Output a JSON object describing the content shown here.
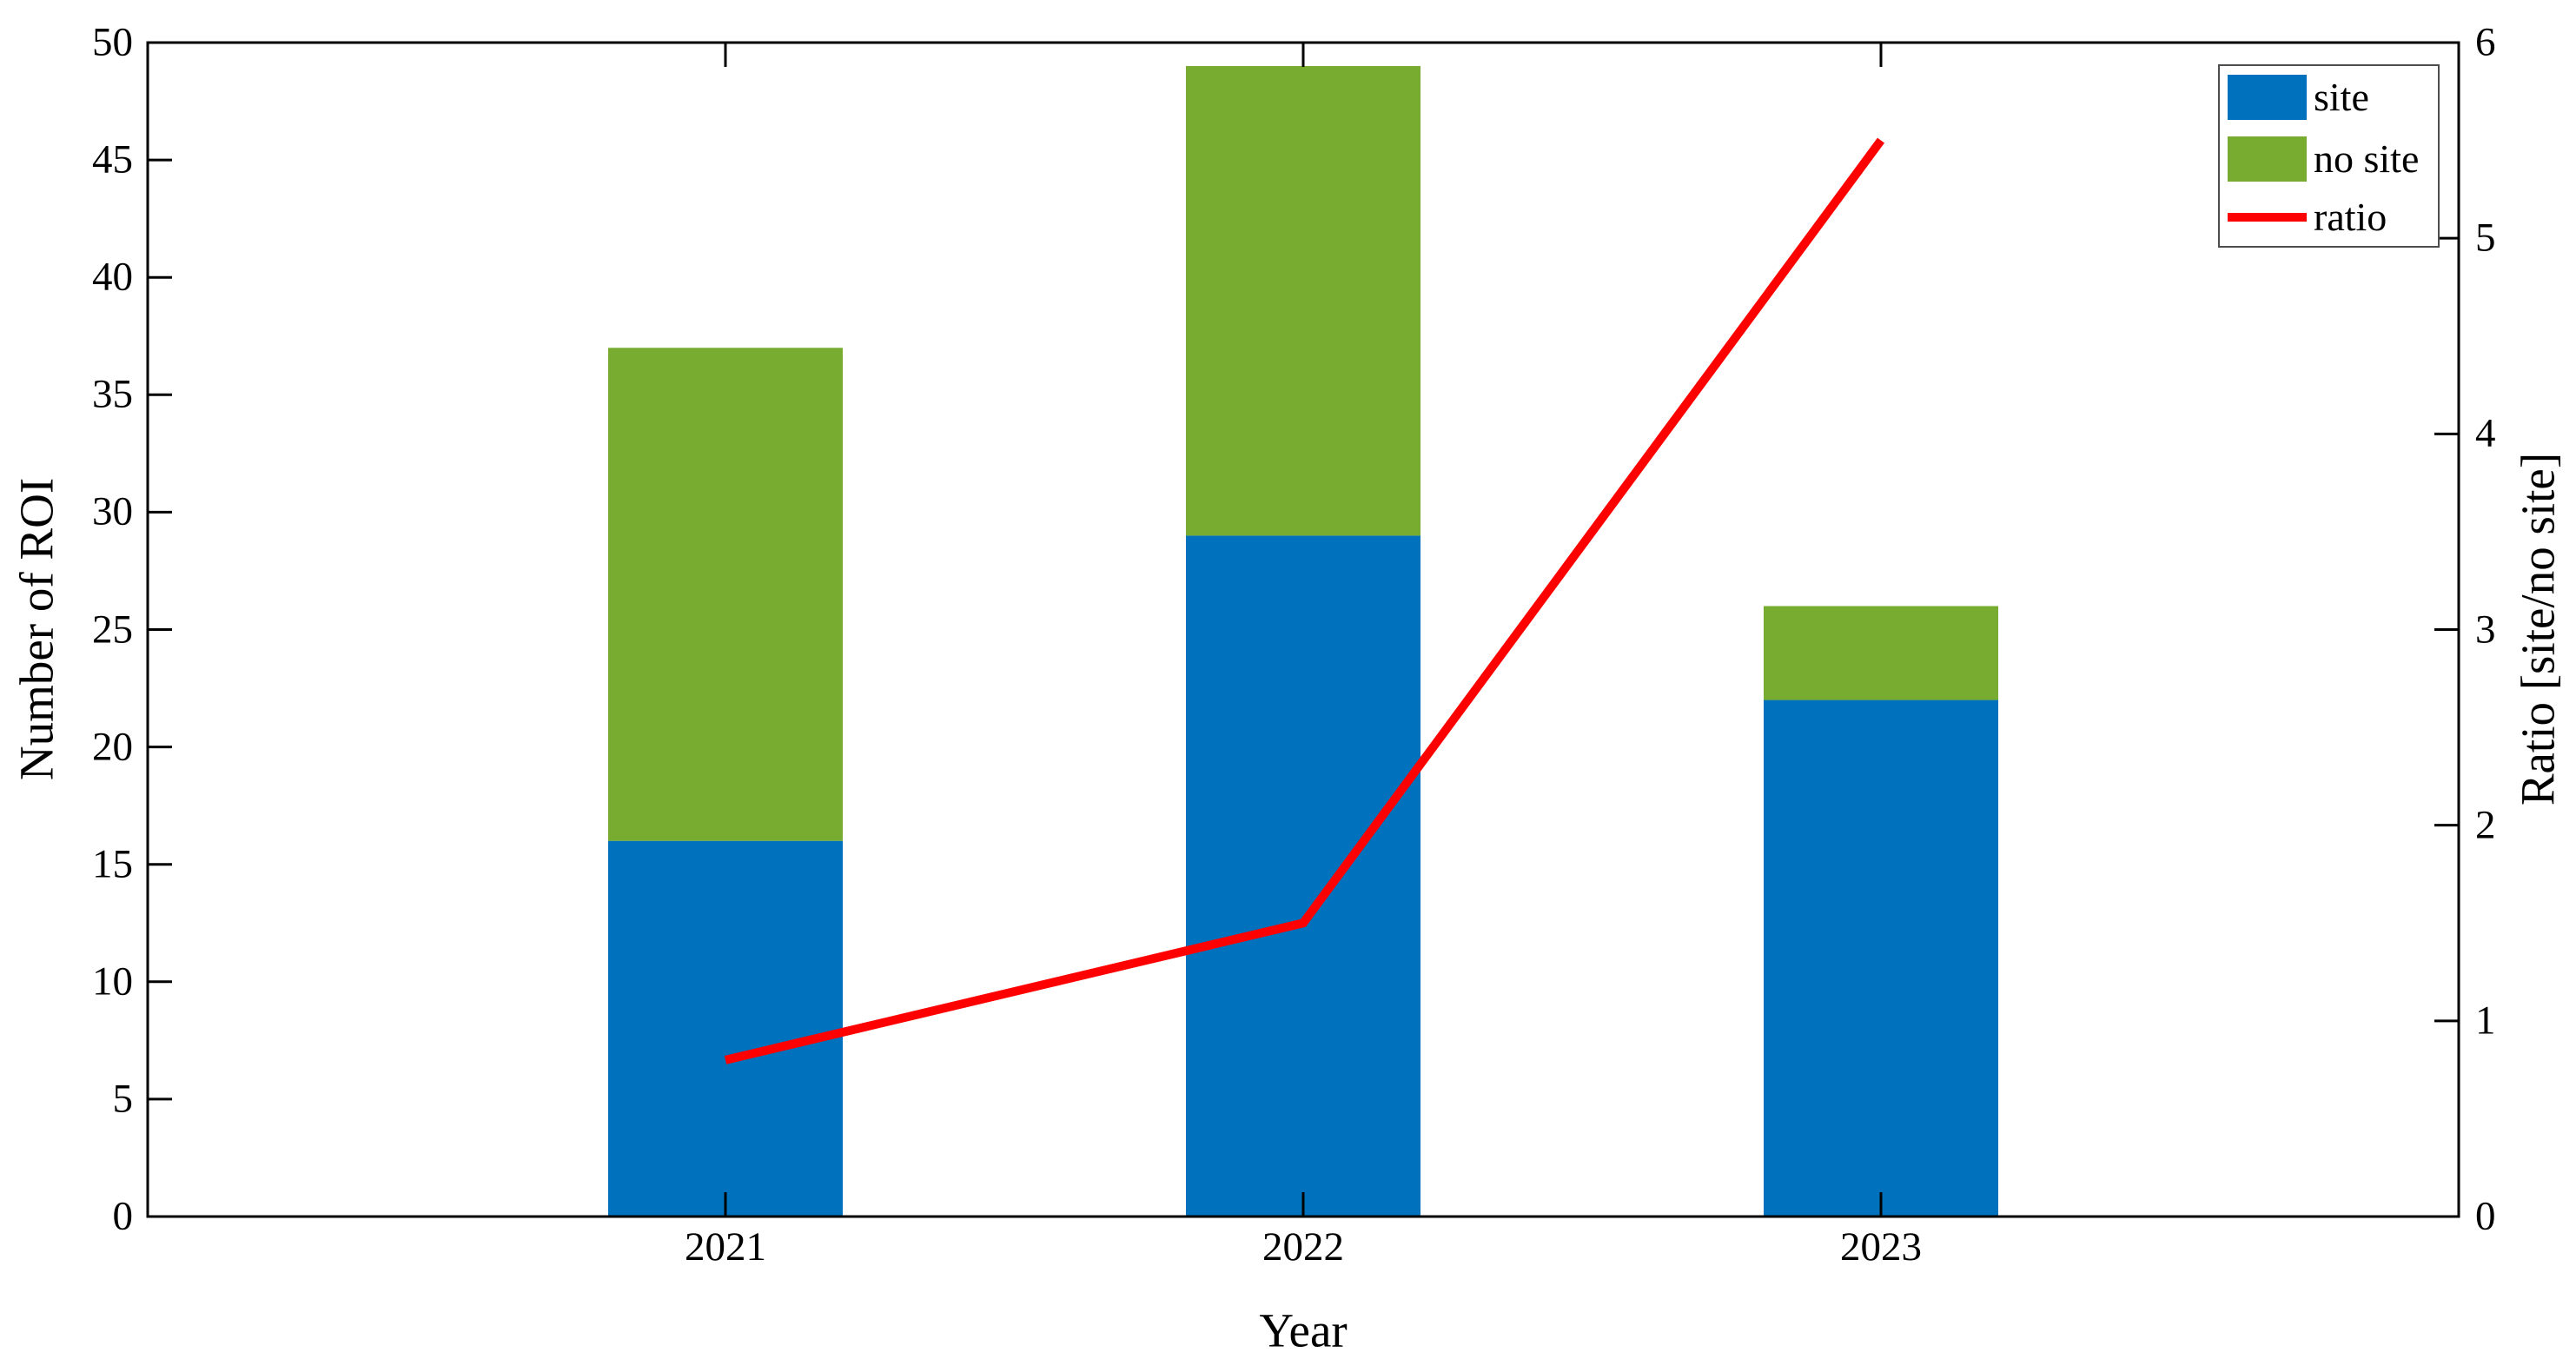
{
  "figure": {
    "background": "#ffffff",
    "axis_color": "#000000"
  },
  "chart_data": {
    "type": "bar",
    "subtype": "stacked-bars-with-line-overlay",
    "categories": [
      "2021",
      "2022",
      "2023"
    ],
    "series": [
      {
        "name": "site",
        "type": "bar",
        "axis": "left",
        "color": "#0072BD",
        "values": [
          16,
          29,
          22
        ]
      },
      {
        "name": "no site",
        "type": "bar",
        "axis": "left",
        "color": "#77AC30",
        "values": [
          21,
          20,
          4
        ]
      },
      {
        "name": "ratio",
        "type": "line",
        "axis": "right",
        "color": "#FF0000",
        "values": [
          0.8,
          1.5,
          5.5
        ]
      }
    ],
    "stacked_totals": [
      37,
      49,
      26
    ],
    "left_axis": {
      "label": "Number of ROI",
      "min": 0,
      "max": 50,
      "ticks": [
        0,
        5,
        10,
        15,
        20,
        25,
        30,
        35,
        40,
        45,
        50
      ]
    },
    "right_axis": {
      "label": "Ratio [site/no site]",
      "min": 0,
      "max": 6,
      "ticks": [
        0,
        1,
        2,
        3,
        4,
        5,
        6
      ]
    },
    "x_axis": {
      "label": "Year"
    },
    "legend": {
      "position": "top-right",
      "entries": [
        "site",
        "no site",
        "ratio"
      ]
    },
    "grid": false
  }
}
